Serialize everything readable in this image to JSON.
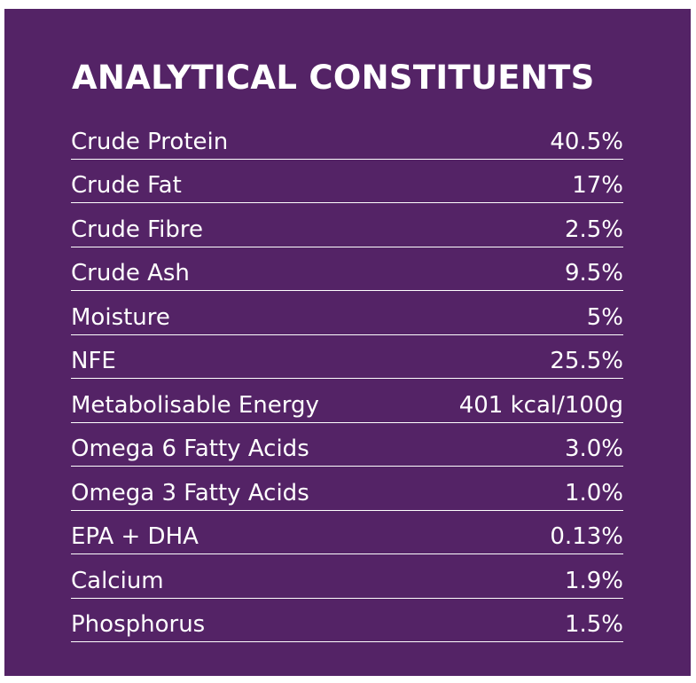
{
  "title": "ANALYTICAL CONSTITUENTS",
  "rows": [
    {
      "label": "Crude Protein",
      "value": "40.5%"
    },
    {
      "label": "Crude Fat",
      "value": "17%"
    },
    {
      "label": "Crude Fibre",
      "value": "2.5%"
    },
    {
      "label": "Crude Ash",
      "value": "9.5%"
    },
    {
      "label": "Moisture",
      "value": "5%"
    },
    {
      "label": "NFE",
      "value": "25.5%"
    },
    {
      "label": "Metabolisable Energy",
      "value": "401 kcal/100g"
    },
    {
      "label": "Omega 6 Fatty Acids",
      "value": "3.0%"
    },
    {
      "label": "Omega 3 Fatty Acids",
      "value": "1.0%"
    },
    {
      "label": "EPA + DHA",
      "value": "0.13%"
    },
    {
      "label": "Calcium",
      "value": "1.9%"
    },
    {
      "label": "Phosphorus",
      "value": "1.5%"
    }
  ],
  "colors": {
    "panel_background": "#542366",
    "text": "#ffffff"
  }
}
